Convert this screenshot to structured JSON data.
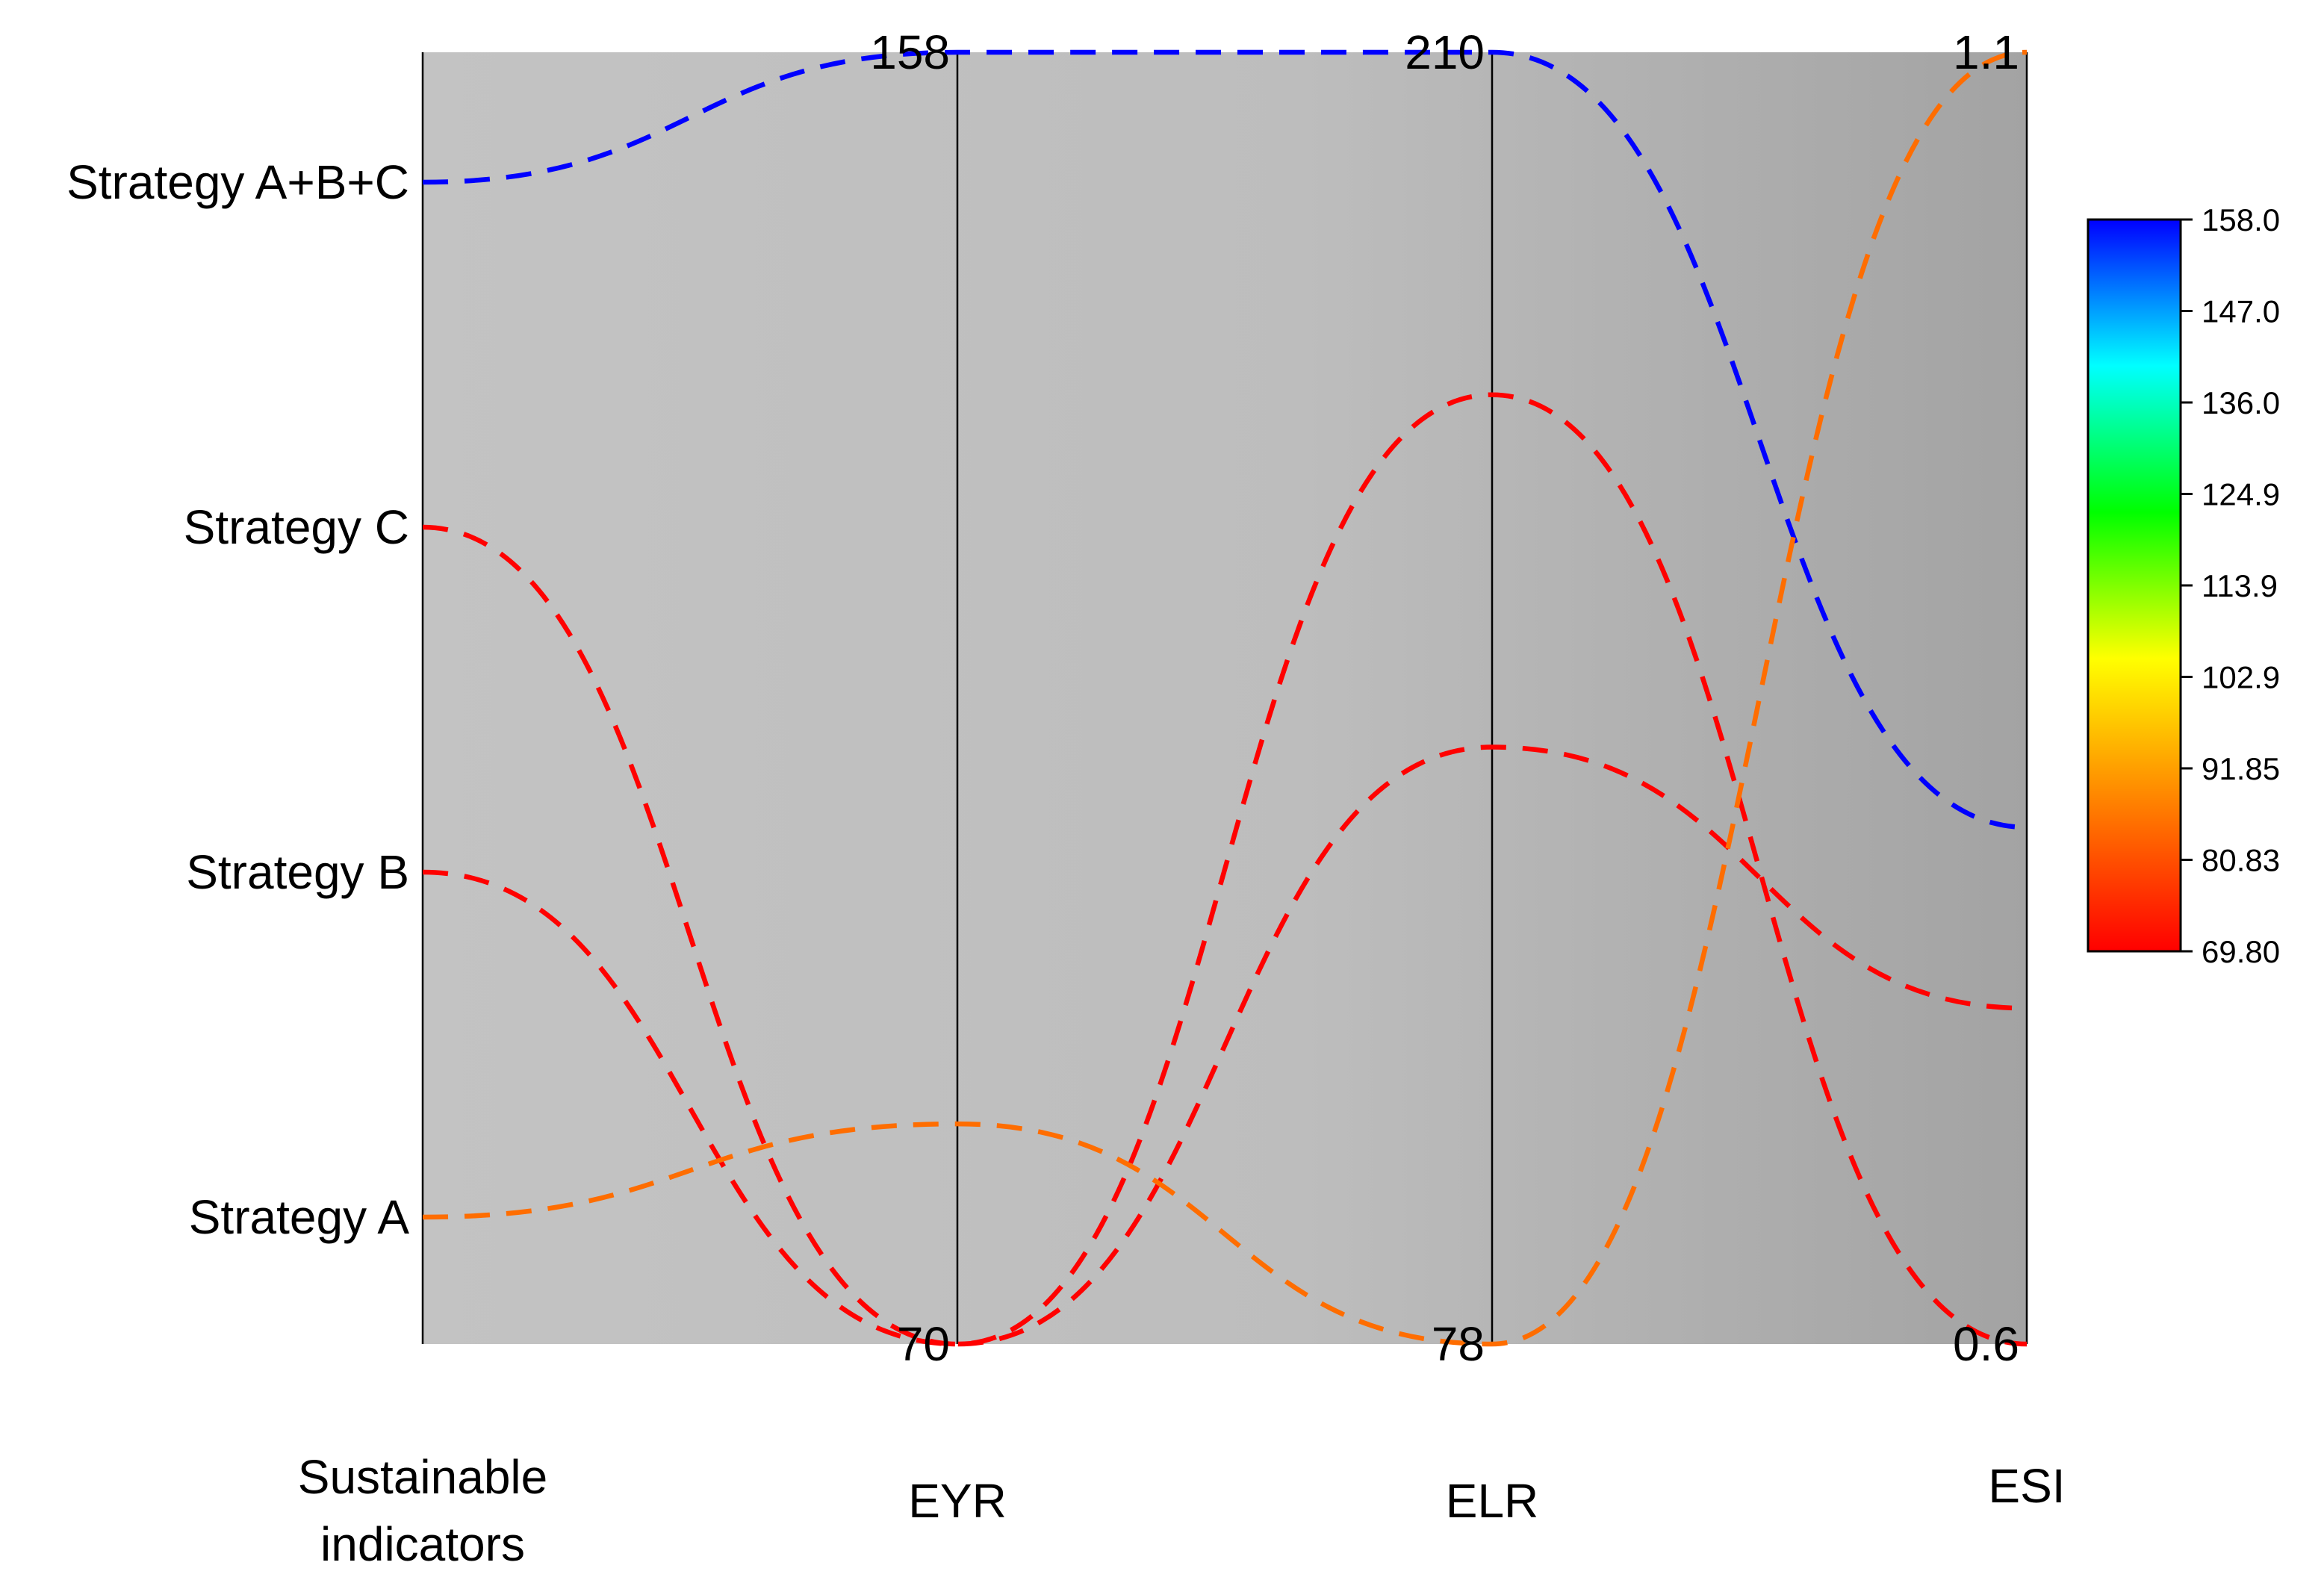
{
  "chart_data": {
    "type": "parallel_coordinates",
    "axes": [
      {
        "name": "Sustainable indicators",
        "label_lines": [
          "Sustainable",
          "indicators"
        ],
        "categorical": true
      },
      {
        "name": "EYR",
        "min": 70,
        "max": 158,
        "min_label": "70",
        "max_label": "158"
      },
      {
        "name": "ELR",
        "min": 78,
        "max": 210,
        "min_label": "78",
        "max_label": "210"
      },
      {
        "name": "ESI",
        "min": 0.6,
        "max": 1.1,
        "min_label": "0.6",
        "max_label": "1.1"
      }
    ],
    "categories": [
      "Strategy A+B+C",
      "Strategy C",
      "Strategy B",
      "Strategy A"
    ],
    "series": [
      {
        "name": "Strategy A+B+C",
        "EYR": 158,
        "ELR": 210,
        "ESI": 0.8
      },
      {
        "name": "Strategy C",
        "EYR": 70,
        "ELR": 175,
        "ESI": 0.6
      },
      {
        "name": "Strategy B",
        "EYR": 70,
        "ELR": 139,
        "ESI": 0.73
      },
      {
        "name": "Strategy A",
        "EYR": 85,
        "ELR": 78,
        "ESI": 1.1
      }
    ],
    "color_by": "EYR",
    "colorbar": {
      "min": 69.8,
      "max": 158.0,
      "ticks": [
        "158.0",
        "147.0",
        "136.0",
        "124.9",
        "113.9",
        "102.9",
        "91.85",
        "80.83",
        "69.80"
      ],
      "colors": [
        "#ff0000",
        "#ff7f00",
        "#ffff00",
        "#00ff00",
        "#00ffff",
        "#0000ff"
      ]
    },
    "line_style": "dashed",
    "title": ""
  }
}
